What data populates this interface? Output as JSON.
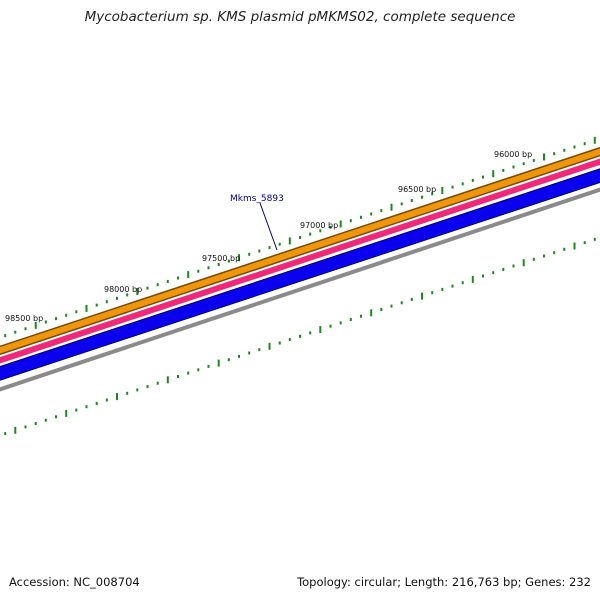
{
  "title": "Mycobacterium sp. KMS plasmid pMKMS02, complete sequence",
  "footer": {
    "accession": "Accession: NC_008704",
    "stats": "Topology: circular; Length: 216,763 bp; Genes: 232"
  },
  "gene_label": "Mkms_5893",
  "ticks": [
    {
      "label": "96000 bp"
    },
    {
      "label": "96500 bp"
    },
    {
      "label": "97000 bp"
    },
    {
      "label": "97500 bp"
    },
    {
      "label": "98000 bp"
    },
    {
      "label": "98500 bp"
    }
  ],
  "colors": {
    "orange_track": "#f0960c",
    "pink_track": "#f0287a",
    "blue_track": "#0a00ee",
    "gray_track": "#8a8a8a",
    "tick": "#1a8a1a",
    "gene_label": "#00008b"
  }
}
